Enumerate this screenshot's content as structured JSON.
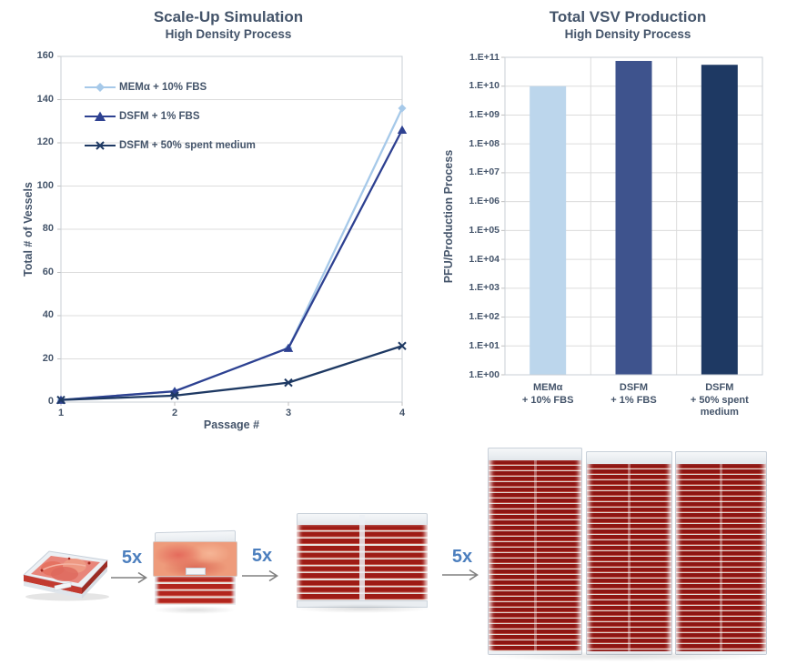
{
  "colors": {
    "text": "#44546A",
    "grid": "#DCDCDC",
    "axis": "#BFBFBF",
    "border": "#C9CFD6",
    "series1": "#A6C9E9",
    "series2": "#2E4191",
    "series3": "#1E3963",
    "flow_label": "#4C7FBE",
    "arrow": "#808080"
  },
  "chart_data": [
    {
      "type": "line",
      "title": "Scale-Up Simulation",
      "subtitle": "High Density Process",
      "xlabel": "Passage #",
      "ylabel": "Total # of Vessels",
      "x": [
        1,
        2,
        3,
        4
      ],
      "xtick_labels": [
        "1",
        "2",
        "3",
        "4"
      ],
      "ytick_labels": [
        "160",
        "140",
        "120",
        "100",
        "80",
        "60",
        "40",
        "20",
        "0"
      ],
      "ylim": [
        0,
        160
      ],
      "grid": "horizontal",
      "legend_position": "inside top-left",
      "series": [
        {
          "name": "MEMα + 10% FBS",
          "marker": "diamond",
          "color": "#A6C9E9",
          "values": [
            1,
            5,
            25,
            136
          ]
        },
        {
          "name": "DSFM + 1% FBS",
          "marker": "triangle",
          "color": "#2E4191",
          "values": [
            1,
            5,
            25,
            126
          ]
        },
        {
          "name": "DSFM + 50% spent medium",
          "marker": "x",
          "color": "#1E3963",
          "values": [
            1,
            3,
            9,
            26
          ]
        }
      ]
    },
    {
      "type": "bar",
      "title": "Total VSV Production",
      "subtitle": "High Density Process",
      "ylabel": "PFU/Production Process",
      "yscale": "log",
      "ylim": [
        1,
        100000000000.0
      ],
      "ytick_labels": [
        "1.E+11",
        "1.E+10",
        "1.E+09",
        "1.E+08",
        "1.E+07",
        "1.E+06",
        "1.E+05",
        "1.E+04",
        "1.E+03",
        "1.E+02",
        "1.E+01",
        "1.E+00"
      ],
      "categories": [
        [
          "MEMα",
          "+ 10% FBS"
        ],
        [
          "DSFM",
          "+ 1% FBS"
        ],
        [
          "DSFM",
          "+ 50% spent",
          "medium"
        ]
      ],
      "values": [
        10000000000.0,
        75000000000.0,
        55000000000.0
      ],
      "colors": [
        "#BCD6EC",
        "#3E538D",
        "#1E3963"
      ]
    }
  ],
  "process_flow": {
    "multipliers": [
      "5x",
      "5x",
      "5x"
    ],
    "vessels": [
      {
        "name": "single-layer-tray"
      },
      {
        "name": "five-layer-stack"
      },
      {
        "name": "ten-layer-stack-pair"
      },
      {
        "name": "three-multilayer-towers"
      }
    ]
  }
}
